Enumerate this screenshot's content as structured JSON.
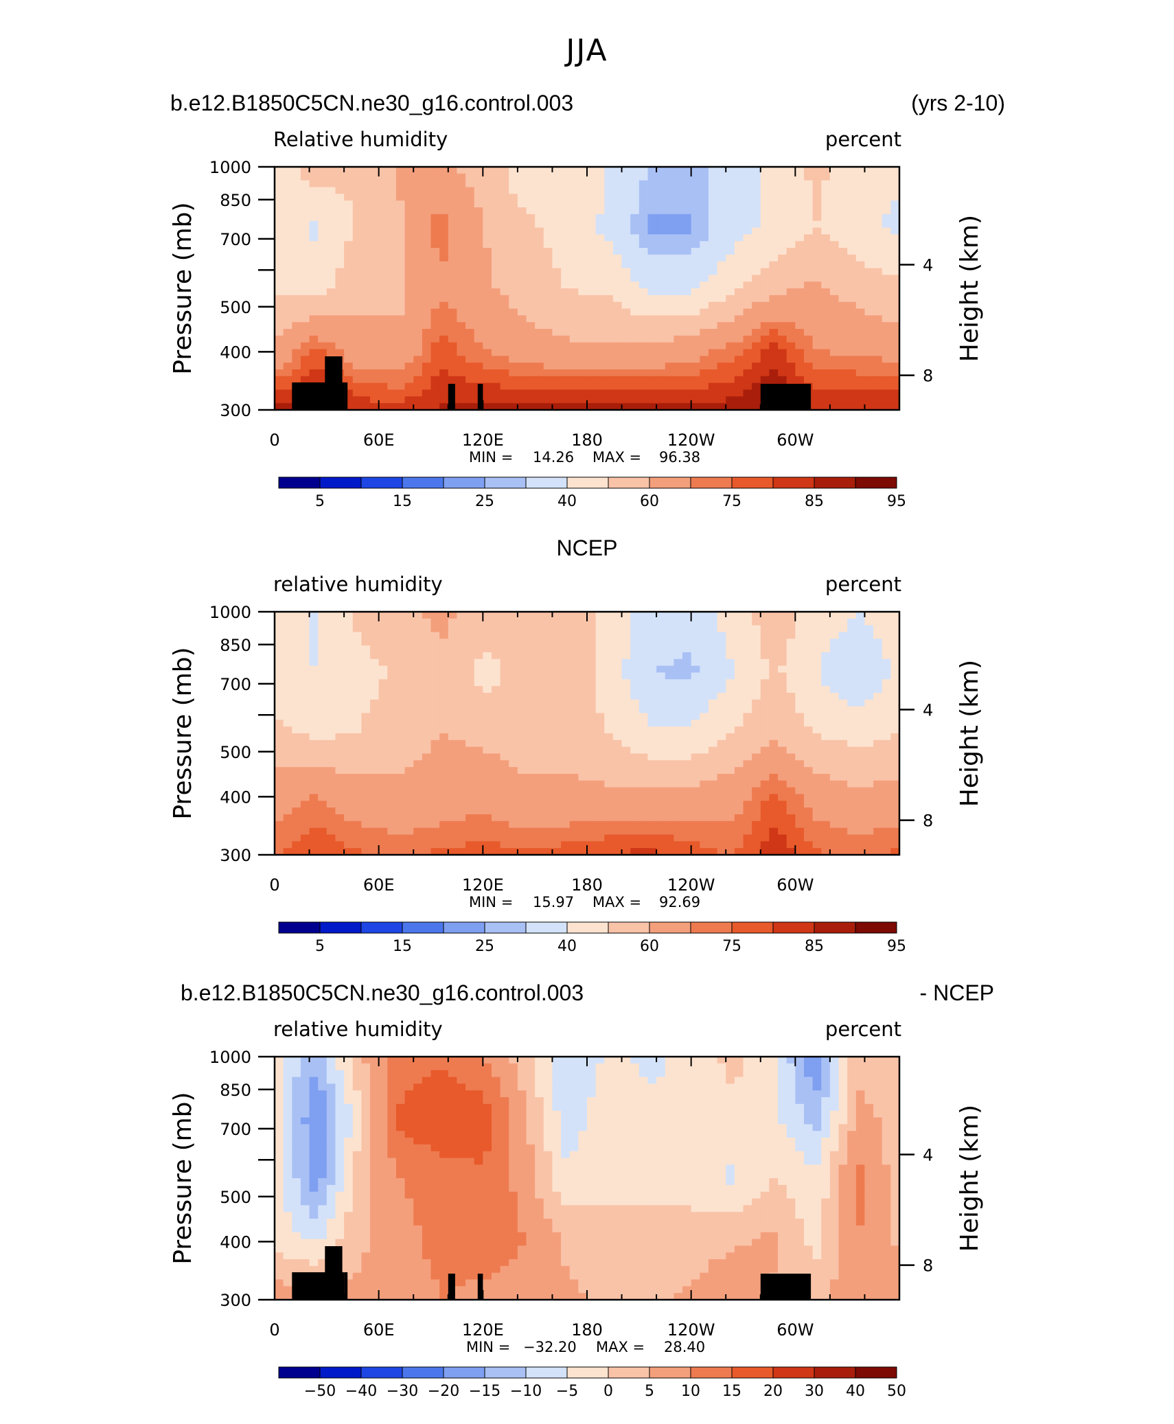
{
  "figure": {
    "title": "JJA",
    "colors": {
      "axes": "#000000",
      "land": "#000000"
    }
  },
  "panels": [
    {
      "header_left": "b.e12.B1850C5CN.ne30_g16.control.003",
      "header_right": "(yrs 2-10)",
      "variable": "Relative humidity",
      "units": "percent",
      "min_label": "MIN =",
      "min": "14.26",
      "max_label": "MAX =",
      "max": "96.38"
    },
    {
      "header_center": "NCEP",
      "variable": "relative humidity",
      "units": "percent",
      "min_label": "MIN =",
      "min": "15.97",
      "max_label": "MAX =",
      "max": "92.69"
    },
    {
      "header_left": "b.e12.B1850C5CN.ne30_g16.control.003",
      "header_right": "- NCEP",
      "variable": "relative humidity",
      "units": "percent",
      "min_label": "MIN =",
      "min": "−32.20",
      "max_label": "MAX =",
      "max": "28.40"
    }
  ],
  "chart_data": [
    {
      "type": "heatmap",
      "subtitle": "b.e12.B1850C5CN.ne30_g16.control.003 (yrs 2-10)",
      "variable": "Relative humidity",
      "units": "percent",
      "xlabel": "",
      "ylabel": "Pressure (mb)",
      "ylabel_right": "Height (km)",
      "x_ticks": [
        "0",
        "60E",
        "120E",
        "180",
        "120W",
        "60W"
      ],
      "x_range": [
        0,
        360
      ],
      "y_ticks": [
        "300",
        "400",
        "500",
        "",
        "700",
        "850",
        "1000"
      ],
      "y_tick_values": [
        300,
        400,
        500,
        600,
        700,
        850,
        1000
      ],
      "y_range": [
        1000,
        300
      ],
      "y_right_ticks": [
        "8",
        "4"
      ],
      "min": 14.26,
      "max": 96.38,
      "colorbar": {
        "labels": [
          "5",
          "15",
          "25",
          "40",
          "60",
          "75",
          "85",
          "95"
        ],
        "colors": [
          "#00008f",
          "#0019c9",
          "#1e46e4",
          "#4c77ec",
          "#7f9ff1",
          "#a9c0f5",
          "#d3e2f9",
          "#fce3cf",
          "#f9c3a8",
          "#f49f7c",
          "#ee7b50",
          "#e85a2b",
          "#cf3716",
          "#a91e0b",
          "#7d0a03"
        ]
      },
      "grid": [
        [
          44,
          56,
          50,
          62,
          62,
          56,
          44,
          48,
          40,
          30,
          28,
          34,
          44,
          52,
          46,
          42
        ],
        [
          44,
          38,
          52,
          58,
          74,
          60,
          52,
          46,
          38,
          24,
          24,
          36,
          42,
          50,
          42,
          38
        ],
        [
          48,
          46,
          56,
          58,
          68,
          62,
          56,
          50,
          48,
          38,
          38,
          48,
          58,
          62,
          56,
          52
        ],
        [
          62,
          76,
          64,
          62,
          78,
          70,
          64,
          62,
          62,
          62,
          66,
          72,
          82,
          70,
          68,
          66
        ],
        [
          86,
          92,
          84,
          82,
          86,
          88,
          88,
          88,
          88,
          88,
          86,
          88,
          92,
          84,
          86,
          86
        ]
      ]
    },
    {
      "type": "heatmap",
      "subtitle": "NCEP",
      "variable": "relative humidity",
      "units": "percent",
      "xlabel": "",
      "ylabel": "Pressure (mb)",
      "ylabel_right": "Height (km)",
      "x_ticks": [
        "0",
        "60E",
        "120E",
        "180",
        "120W",
        "60W"
      ],
      "x_range": [
        0,
        360
      ],
      "y_ticks": [
        "300",
        "400",
        "500",
        "",
        "700",
        "850",
        "1000"
      ],
      "y_tick_values": [
        300,
        400,
        500,
        600,
        700,
        850,
        1000
      ],
      "y_range": [
        1000,
        300
      ],
      "y_right_ticks": [
        "8",
        "4"
      ],
      "min": 15.97,
      "max": 92.69,
      "colorbar": {
        "labels": [
          "5",
          "15",
          "25",
          "40",
          "60",
          "75",
          "85",
          "95"
        ],
        "colors": [
          "#00008f",
          "#0019c9",
          "#1e46e4",
          "#4c77ec",
          "#7f9ff1",
          "#a9c0f5",
          "#d3e2f9",
          "#fce3cf",
          "#f9c3a8",
          "#f49f7c",
          "#ee7b50",
          "#e85a2b",
          "#cf3716",
          "#a91e0b",
          "#7d0a03"
        ]
      },
      "grid": [
        [
          48,
          38,
          52,
          58,
          62,
          58,
          56,
          58,
          48,
          36,
          34,
          44,
          56,
          46,
          40,
          46
        ],
        [
          44,
          40,
          46,
          52,
          58,
          46,
          54,
          56,
          46,
          30,
          28,
          40,
          52,
          40,
          32,
          42
        ],
        [
          52,
          48,
          50,
          56,
          60,
          58,
          56,
          56,
          50,
          42,
          42,
          50,
          58,
          50,
          46,
          50
        ],
        [
          66,
          70,
          64,
          62,
          64,
          66,
          62,
          62,
          62,
          62,
          62,
          66,
          76,
          66,
          62,
          64
        ],
        [
          74,
          80,
          76,
          74,
          76,
          78,
          76,
          78,
          80,
          82,
          78,
          74,
          84,
          76,
          74,
          76
        ]
      ]
    },
    {
      "type": "heatmap",
      "subtitle": "b.e12.B1850C5CN.ne30_g16.control.003 - NCEP",
      "variable": "relative humidity",
      "units": "percent",
      "xlabel": "",
      "ylabel": "Pressure (mb)",
      "ylabel_right": "Height (km)",
      "x_ticks": [
        "0",
        "60E",
        "120E",
        "180",
        "120W",
        "60W"
      ],
      "x_range": [
        0,
        360
      ],
      "y_ticks": [
        "300",
        "400",
        "500",
        "",
        "700",
        "850",
        "1000"
      ],
      "y_tick_values": [
        300,
        400,
        500,
        600,
        700,
        850,
        1000
      ],
      "y_range": [
        1000,
        300
      ],
      "y_right_ticks": [
        "8",
        "4"
      ],
      "min": -32.2,
      "max": 28.4,
      "colorbar": {
        "labels": [
          "−50",
          "−40",
          "−30",
          "−20",
          "−15",
          "−10",
          "−5",
          "0",
          "5",
          "10",
          "15",
          "20",
          "30",
          "40",
          "50"
        ],
        "colors": [
          "#00008f",
          "#0019c9",
          "#1e46e4",
          "#4c77ec",
          "#7f9ff1",
          "#a9c0f5",
          "#d3e2f9",
          "#fce3cf",
          "#f9c3a8",
          "#f49f7c",
          "#ee7b50",
          "#e85a2b",
          "#cf3716",
          "#a91e0b",
          "#7d0a03"
        ]
      },
      "grid": [
        [
          -4,
          -14,
          4,
          12,
          14,
          10,
          2,
          -10,
          -4,
          -6,
          -4,
          2,
          -4,
          -20,
          4,
          2
        ],
        [
          -2,
          -20,
          -2,
          16,
          20,
          18,
          6,
          -8,
          -2,
          -4,
          -4,
          -2,
          -4,
          -12,
          6,
          4
        ],
        [
          -2,
          -18,
          2,
          10,
          12,
          14,
          8,
          -4,
          -2,
          -2,
          -2,
          -6,
          0,
          -4,
          12,
          2
        ],
        [
          -2,
          -6,
          4,
          8,
          12,
          14,
          10,
          4,
          2,
          2,
          2,
          4,
          6,
          -2,
          10,
          4
        ],
        [
          8,
          8,
          6,
          6,
          10,
          8,
          8,
          6,
          4,
          4,
          6,
          10,
          4,
          4,
          8,
          8
        ]
      ]
    }
  ]
}
